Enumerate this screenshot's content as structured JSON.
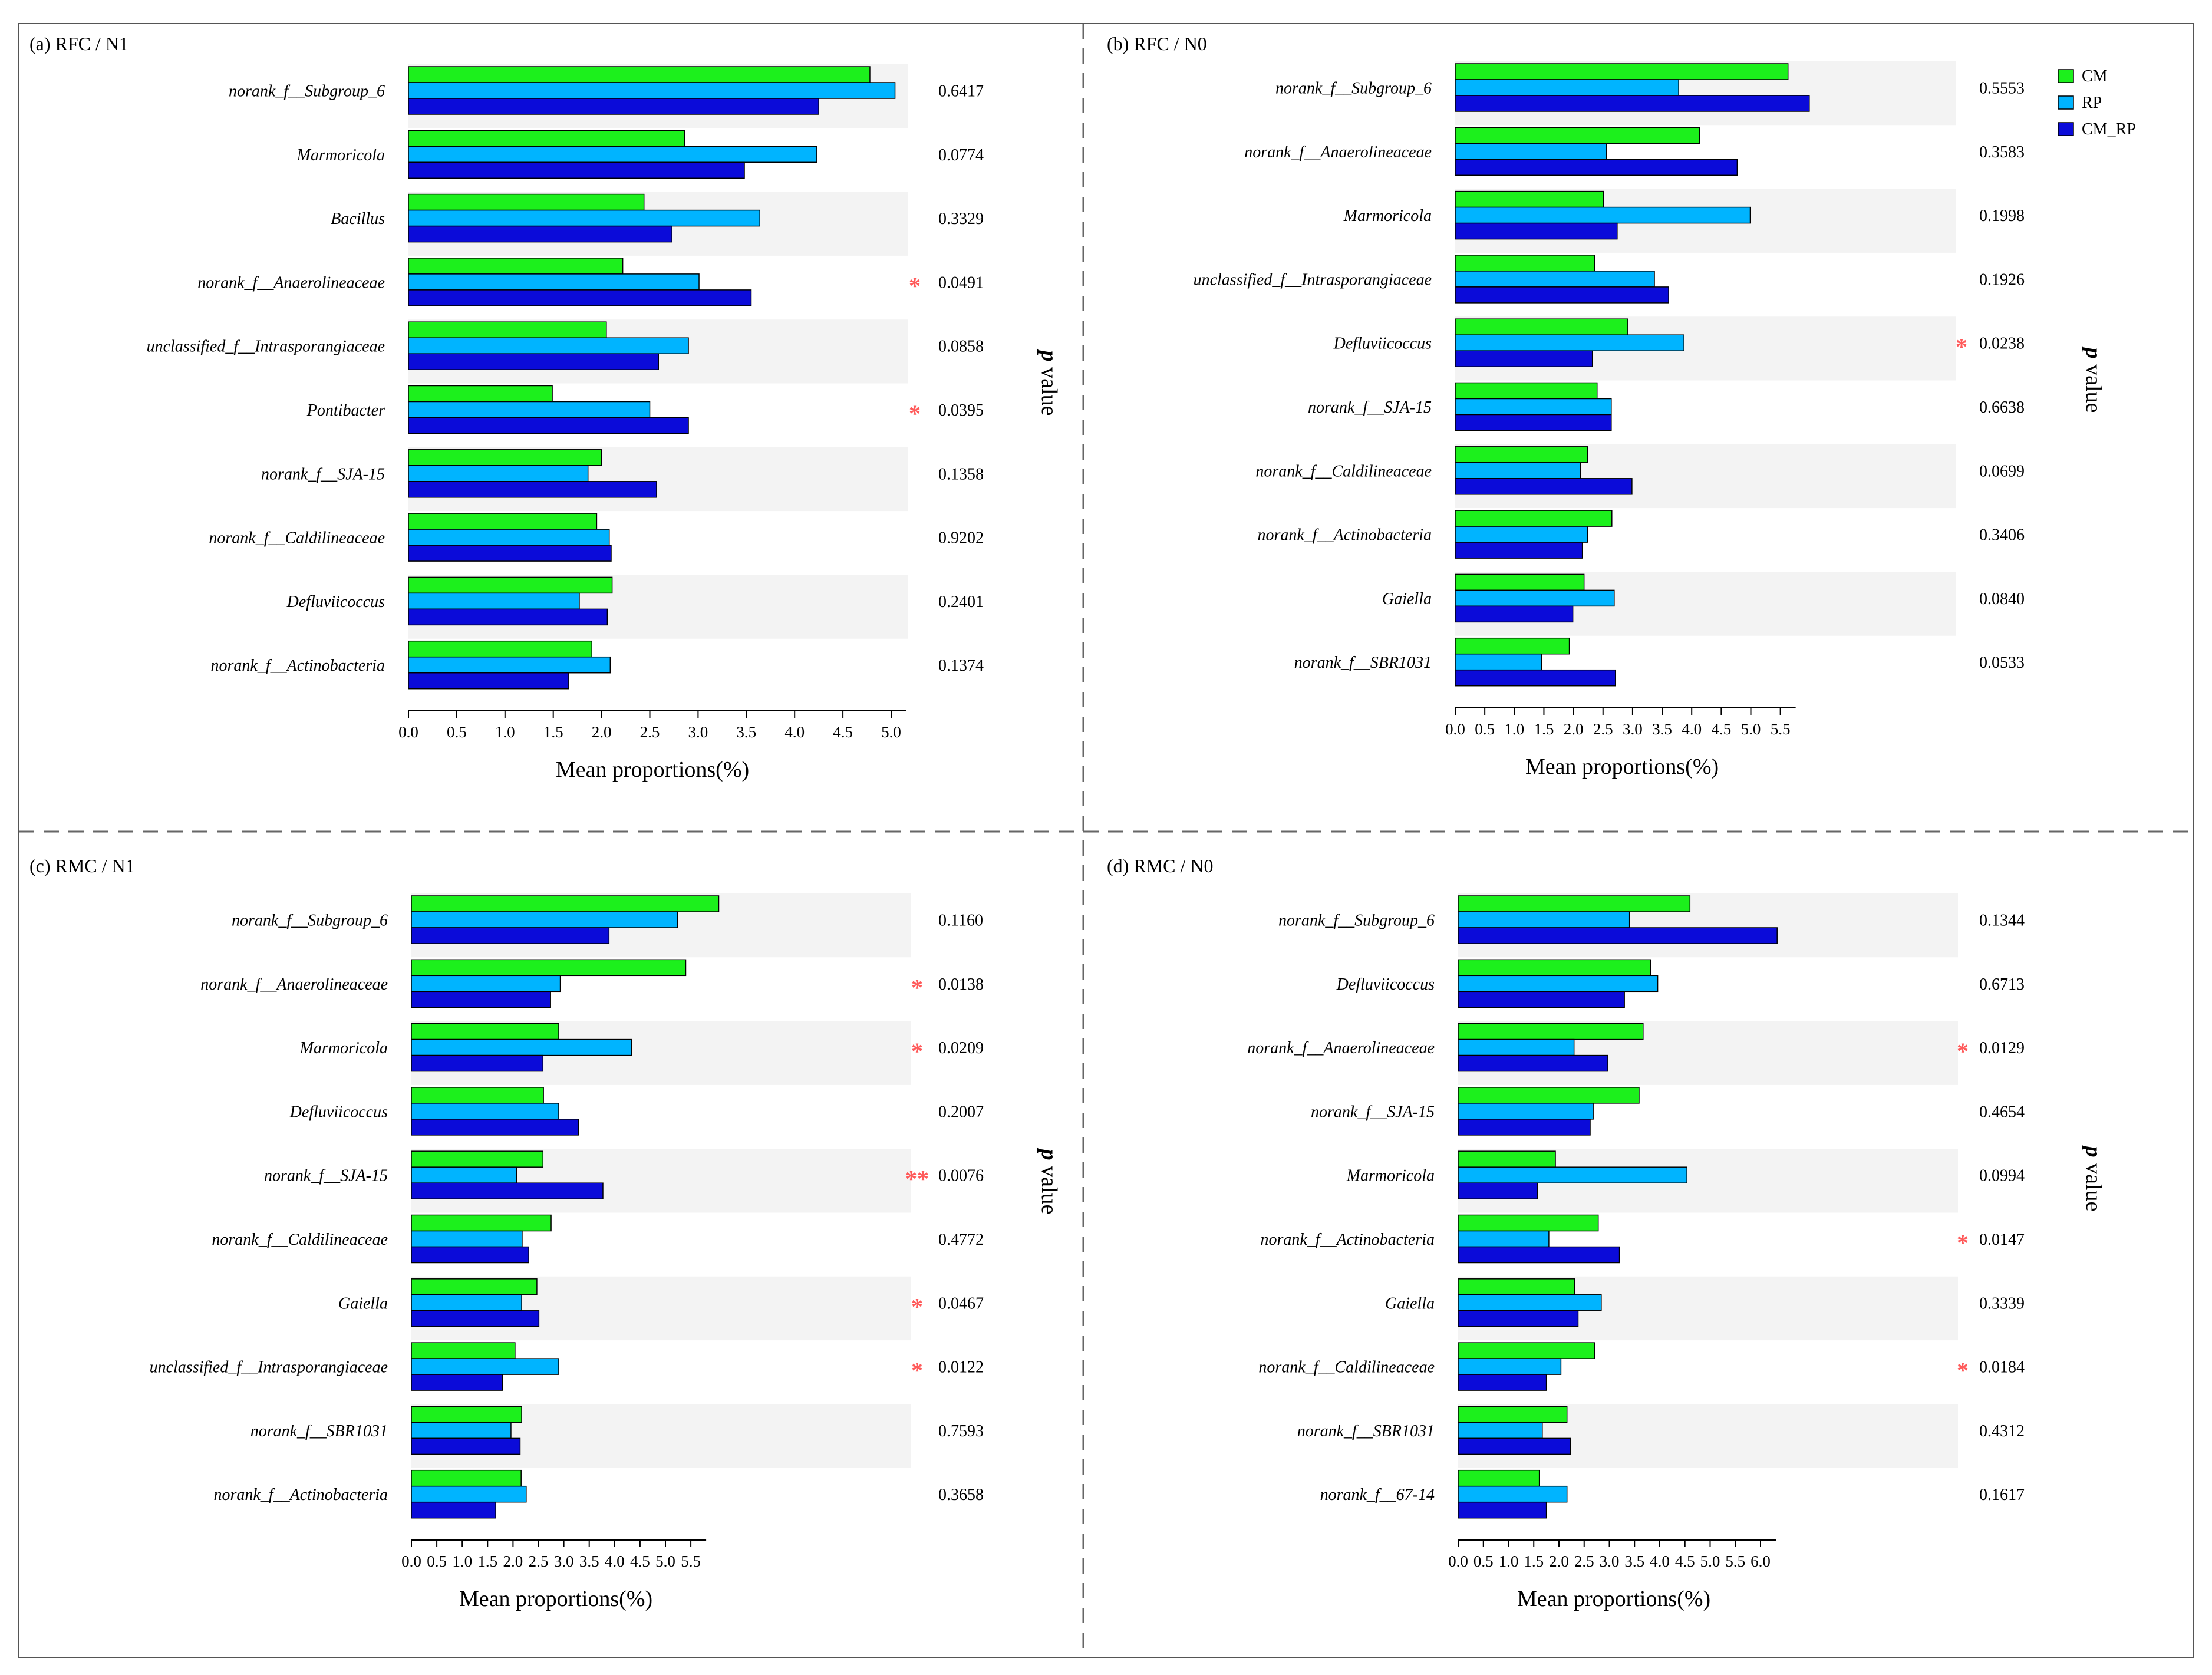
{
  "colors": {
    "CM": "#1cf01c",
    "RP": "#00b4ff",
    "CM_RP": "#0b0bd9",
    "band": "#f3f3f3",
    "star": "#ff5a5a",
    "divider": "#666666"
  },
  "legend": {
    "items": [
      "CM",
      "RP",
      "CM_RP"
    ]
  },
  "chart_data": [
    {
      "type": "bar",
      "orientation": "horizontal",
      "title": "(a)  RFC / N1",
      "xlabel": "Mean proportions(%)",
      "p_label": {
        "italic": "p",
        "rest": " value"
      },
      "xlim": [
        0,
        5.0
      ],
      "xticks": [
        "0.0",
        "0.5",
        "1.0",
        "1.5",
        "2.0",
        "2.5",
        "3.0",
        "3.5",
        "4.0",
        "4.5",
        "5.0"
      ],
      "categories": [
        "norank_f__Subgroup_6",
        "Marmoricola",
        "Bacillus",
        "norank_f__Anaerolineaceae",
        "unclassified_f__Intrasporangiaceae",
        "Pontibacter",
        "norank_f__SJA-15",
        "norank_f__Caldilineaceae",
        "Defluviicoccus",
        "norank_f__Actinobacteria"
      ],
      "series": [
        {
          "name": "CM",
          "values": [
            4.78,
            2.86,
            2.44,
            2.22,
            2.05,
            1.49,
            2.0,
            1.95,
            2.11,
            1.9
          ]
        },
        {
          "name": "RP",
          "values": [
            5.04,
            4.23,
            3.64,
            3.01,
            2.9,
            2.5,
            1.86,
            2.08,
            1.77,
            2.09
          ]
        },
        {
          "name": "CM_RP",
          "values": [
            4.25,
            3.48,
            2.73,
            3.55,
            2.59,
            2.9,
            2.57,
            2.1,
            2.06,
            1.66
          ]
        }
      ],
      "p_values": [
        "0.6417",
        "0.0774",
        "0.3329",
        "0.0491",
        "0.0858",
        "0.0395",
        "0.1358",
        "0.9202",
        "0.2401",
        "0.1374"
      ],
      "significance": [
        "",
        "",
        "",
        "*",
        "",
        "*",
        "",
        "",
        "",
        ""
      ]
    },
    {
      "type": "bar",
      "orientation": "horizontal",
      "title": "(b)  RFC / N0",
      "xlabel": "Mean proportions(%)",
      "p_label": {
        "italic": "p",
        "rest": " value"
      },
      "xlim": [
        0,
        6.0
      ],
      "xticks": [
        "0.0",
        "0.5",
        "1.0",
        "1.5",
        "2.0",
        "2.5",
        "3.0",
        "3.5",
        "4.0",
        "4.5",
        "5.0",
        "5.5"
      ],
      "categories": [
        "norank_f__Subgroup_6",
        "norank_f__Anaerolineaceae",
        "Marmoricola",
        "unclassified_f__Intrasporangiaceae",
        "Defluviicoccus",
        "norank_f__SJA-15",
        "norank_f__Caldilineaceae",
        "norank_f__Actinobacteria",
        "Gaiella",
        "norank_f__SBR1031"
      ],
      "series": [
        {
          "name": "CM",
          "values": [
            5.63,
            4.13,
            2.51,
            2.36,
            2.92,
            2.4,
            2.24,
            2.65,
            2.18,
            1.93
          ]
        },
        {
          "name": "RP",
          "values": [
            3.78,
            2.56,
            4.99,
            3.37,
            3.87,
            2.64,
            2.12,
            2.24,
            2.69,
            1.46
          ]
        },
        {
          "name": "CM_RP",
          "values": [
            5.99,
            4.77,
            2.74,
            3.61,
            2.32,
            2.64,
            2.99,
            2.15,
            1.99,
            2.71
          ]
        }
      ],
      "p_values": [
        "0.5553",
        "0.3583",
        "0.1998",
        "0.1926",
        "0.0238",
        "0.6638",
        "0.0699",
        "0.3406",
        "0.0840",
        "0.0533"
      ],
      "significance": [
        "",
        "",
        "",
        "",
        "*",
        "",
        "",
        "",
        "",
        ""
      ]
    },
    {
      "type": "bar",
      "orientation": "horizontal",
      "title": "(c)  RMC / N1",
      "xlabel": "Mean proportions(%)",
      "p_label": {
        "italic": "p",
        "rest": " value"
      },
      "xlim": [
        0,
        6.0
      ],
      "xticks": [
        "0.0",
        "0.5",
        "1.0",
        "1.5",
        "2.0",
        "2.5",
        "3.0",
        "3.5",
        "4.0",
        "4.5",
        "5.0",
        "5.5"
      ],
      "categories": [
        "norank_f__Subgroup_6",
        "norank_f__Anaerolineaceae",
        "Marmoricola",
        "Defluviicoccus",
        "norank_f__SJA-15",
        "norank_f__Caldilineaceae",
        "Gaiella",
        "unclassified_f__Intrasporangiaceae",
        "norank_f__SBR1031",
        "norank_f__Actinobacteria"
      ],
      "series": [
        {
          "name": "CM",
          "values": [
            6.05,
            5.4,
            2.9,
            2.6,
            2.59,
            2.75,
            2.47,
            2.04,
            2.17,
            2.16
          ]
        },
        {
          "name": "RP",
          "values": [
            5.24,
            2.93,
            4.33,
            2.9,
            2.07,
            2.18,
            2.17,
            2.9,
            1.96,
            2.26
          ]
        },
        {
          "name": "CM_RP",
          "values": [
            3.89,
            2.74,
            2.59,
            3.29,
            3.77,
            2.31,
            2.51,
            1.79,
            2.14,
            1.66
          ]
        }
      ],
      "p_values": [
        "0.1160",
        "0.0138",
        "0.0209",
        "0.2007",
        "0.0076",
        "0.4772",
        "0.0467",
        "0.0122",
        "0.7593",
        "0.3658"
      ],
      "significance": [
        "",
        "*",
        "*",
        "",
        "**",
        "",
        "*",
        "*",
        "",
        ""
      ]
    },
    {
      "type": "bar",
      "orientation": "horizontal",
      "title": "(d)  RMC / N0",
      "xlabel": "Mean proportions(%)",
      "p_label": {
        "italic": "p",
        "rest": " value"
      },
      "xlim": [
        0,
        6.5
      ],
      "xticks": [
        "0.0",
        "0.5",
        "1.0",
        "1.5",
        "2.0",
        "2.5",
        "3.0",
        "3.5",
        "4.0",
        "4.5",
        "5.0",
        "5.5",
        "6.0"
      ],
      "categories": [
        "norank_f__Subgroup_6",
        "Defluviicoccus",
        "norank_f__Anaerolineaceae",
        "norank_f__SJA-15",
        "Marmoricola",
        "norank_f__Actinobacteria",
        "Gaiella",
        "norank_f__Caldilineaceae",
        "norank_f__SBR1031",
        "norank_f__67-14"
      ],
      "series": [
        {
          "name": "CM",
          "values": [
            4.6,
            3.82,
            3.67,
            3.59,
            1.93,
            2.78,
            2.31,
            2.71,
            2.16,
            1.61
          ]
        },
        {
          "name": "RP",
          "values": [
            3.4,
            3.96,
            2.3,
            2.68,
            4.54,
            1.8,
            2.84,
            2.04,
            1.67,
            2.16
          ]
        },
        {
          "name": "CM_RP",
          "values": [
            6.33,
            3.3,
            2.97,
            2.62,
            1.57,
            3.2,
            2.38,
            1.75,
            2.23,
            1.75
          ]
        }
      ],
      "p_values": [
        "0.1344",
        "0.6713",
        "0.0129",
        "0.4654",
        "0.0994",
        "0.0147",
        "0.3339",
        "0.0184",
        "0.4312",
        "0.1617"
      ],
      "significance": [
        "",
        "",
        "*",
        "",
        "",
        "*",
        "",
        "*",
        "",
        ""
      ]
    }
  ]
}
